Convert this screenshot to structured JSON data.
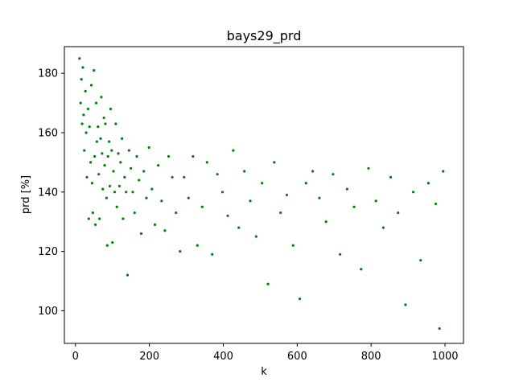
{
  "chart_data": {
    "type": "scatter",
    "title": "bays29_prd",
    "xlabel": "k",
    "ylabel": "prd [%]",
    "xlim": [
      -30,
      1050
    ],
    "ylim": [
      89,
      189
    ],
    "xticks": [
      0,
      200,
      400,
      600,
      800,
      1000
    ],
    "yticks": [
      100,
      120,
      140,
      160,
      180
    ],
    "xtick_labels": [
      "0",
      "200",
      "400",
      "600",
      "800",
      "1000"
    ],
    "ytick_labels": [
      "100",
      "120",
      "140",
      "160",
      "180"
    ],
    "grid": false,
    "marker_color": "#008000",
    "series": [
      {
        "x": [
          11,
          14,
          16,
          18,
          20,
          22,
          24,
          27,
          29,
          31,
          34,
          36,
          38,
          41,
          43,
          45,
          47,
          50,
          52,
          54,
          56,
          58,
          61,
          63,
          65,
          68,
          70,
          72,
          74,
          77,
          79,
          81,
          84,
          86,
          88,
          91,
          93,
          95,
          98,
          100,
          103,
          106,
          109,
          112,
          116,
          119,
          122,
          126,
          129,
          133,
          137,
          141,
          145,
          150,
          155,
          160,
          166,
          172,
          178,
          185,
          192,
          199,
          207,
          215,
          224,
          233,
          242,
          252,
          262,
          272,
          283,
          294,
          306,
          318,
          330,
          343,
          356,
          370,
          384,
          398,
          412,
          427,
          442,
          457,
          473,
          489,
          505,
          521,
          538,
          555,
          572,
          589,
          607,
          624,
          642,
          660,
          678,
          697,
          716,
          735,
          754,
          773,
          793,
          813,
          833,
          853,
          873,
          893,
          914,
          934,
          955,
          975,
          985,
          995
        ],
        "y": [
          185,
          170,
          178,
          163,
          182,
          166,
          154,
          174,
          160,
          145,
          168,
          131,
          162,
          150,
          176,
          143,
          133,
          181,
          152,
          129,
          170,
          157,
          162,
          146,
          131,
          158,
          172,
          153,
          141,
          165,
          149,
          163,
          138,
          122,
          152,
          157,
          142,
          168,
          154,
          123,
          147,
          140,
          163,
          135,
          153,
          142,
          150,
          158,
          131,
          145,
          140,
          112,
          154,
          148,
          140,
          133,
          152,
          144,
          126,
          147,
          138,
          155,
          141,
          129,
          149,
          137,
          127,
          152,
          145,
          133,
          120,
          145,
          138,
          152,
          122,
          135,
          150,
          119,
          146,
          140,
          132,
          154,
          128,
          147,
          137,
          125,
          143,
          109,
          150,
          133,
          139,
          122,
          104,
          143,
          147,
          138,
          130,
          146,
          119,
          141,
          135,
          114,
          148,
          137,
          128,
          145,
          133,
          102,
          140,
          117,
          143,
          136,
          94,
          147
        ]
      }
    ]
  }
}
